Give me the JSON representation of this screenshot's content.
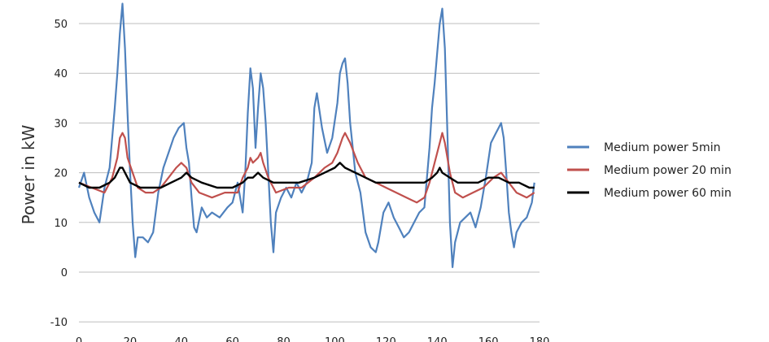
{
  "chart_data": {
    "type": "line",
    "title": "",
    "xlabel": "",
    "ylabel": "Power in kW",
    "xlim": [
      0,
      180
    ],
    "ylim": [
      -10,
      55
    ],
    "x_ticks": [
      0,
      20,
      40,
      60,
      80,
      100,
      120,
      140,
      160,
      180
    ],
    "y_ticks": [
      -10,
      0,
      10,
      20,
      30,
      40,
      50
    ],
    "grid": "horizontal",
    "legend_position": "right",
    "series": [
      {
        "name": "Medium power 5min",
        "color": "#4f81bd",
        "points": [
          [
            0,
            17
          ],
          [
            2,
            20
          ],
          [
            4,
            15
          ],
          [
            6,
            12
          ],
          [
            8,
            10
          ],
          [
            10,
            17
          ],
          [
            12,
            21
          ],
          [
            14,
            33
          ],
          [
            15,
            40
          ],
          [
            16,
            48
          ],
          [
            17,
            54
          ],
          [
            18,
            45
          ],
          [
            19,
            32
          ],
          [
            20,
            20
          ],
          [
            21,
            10
          ],
          [
            22,
            3
          ],
          [
            23,
            7
          ],
          [
            25,
            7
          ],
          [
            27,
            6
          ],
          [
            29,
            8
          ],
          [
            31,
            16
          ],
          [
            33,
            21
          ],
          [
            35,
            24
          ],
          [
            37,
            27
          ],
          [
            39,
            29
          ],
          [
            41,
            30
          ],
          [
            42,
            25
          ],
          [
            43,
            22
          ],
          [
            44,
            15
          ],
          [
            45,
            9
          ],
          [
            46,
            8
          ],
          [
            48,
            13
          ],
          [
            50,
            11
          ],
          [
            52,
            12
          ],
          [
            55,
            11
          ],
          [
            58,
            13
          ],
          [
            60,
            14
          ],
          [
            62,
            18
          ],
          [
            64,
            12
          ],
          [
            65,
            20
          ],
          [
            66,
            32
          ],
          [
            67,
            41
          ],
          [
            68,
            37
          ],
          [
            69,
            25
          ],
          [
            70,
            33
          ],
          [
            71,
            40
          ],
          [
            72,
            37
          ],
          [
            73,
            30
          ],
          [
            74,
            20
          ],
          [
            75,
            10
          ],
          [
            76,
            4
          ],
          [
            77,
            12
          ],
          [
            79,
            15
          ],
          [
            81,
            17
          ],
          [
            83,
            15
          ],
          [
            85,
            18
          ],
          [
            87,
            16
          ],
          [
            89,
            18
          ],
          [
            91,
            22
          ],
          [
            92,
            33
          ],
          [
            93,
            36
          ],
          [
            95,
            29
          ],
          [
            97,
            24
          ],
          [
            99,
            27
          ],
          [
            101,
            34
          ],
          [
            102,
            40
          ],
          [
            103,
            42
          ],
          [
            104,
            43
          ],
          [
            105,
            38
          ],
          [
            106,
            30
          ],
          [
            107,
            25
          ],
          [
            108,
            20
          ],
          [
            110,
            16
          ],
          [
            112,
            8
          ],
          [
            114,
            5
          ],
          [
            116,
            4
          ],
          [
            117,
            6
          ],
          [
            119,
            12
          ],
          [
            121,
            14
          ],
          [
            123,
            11
          ],
          [
            125,
            9
          ],
          [
            127,
            7
          ],
          [
            129,
            8
          ],
          [
            131,
            10
          ],
          [
            133,
            12
          ],
          [
            135,
            13
          ],
          [
            137,
            25
          ],
          [
            138,
            33
          ],
          [
            139,
            38
          ],
          [
            140,
            44
          ],
          [
            141,
            50
          ],
          [
            142,
            53
          ],
          [
            143,
            45
          ],
          [
            144,
            28
          ],
          [
            145,
            10
          ],
          [
            146,
            1
          ],
          [
            147,
            6
          ],
          [
            149,
            10
          ],
          [
            151,
            11
          ],
          [
            153,
            12
          ],
          [
            155,
            9
          ],
          [
            157,
            13
          ],
          [
            159,
            19
          ],
          [
            161,
            26
          ],
          [
            163,
            28
          ],
          [
            164,
            29
          ],
          [
            165,
            30
          ],
          [
            166,
            27
          ],
          [
            167,
            20
          ],
          [
            168,
            12
          ],
          [
            169,
            8
          ],
          [
            170,
            5
          ],
          [
            171,
            8
          ],
          [
            173,
            10
          ],
          [
            175,
            11
          ],
          [
            177,
            14
          ],
          [
            178,
            18
          ]
        ]
      },
      {
        "name": "Medium power 20 min",
        "color": "#c0504d",
        "points": [
          [
            0,
            18
          ],
          [
            5,
            17
          ],
          [
            10,
            16
          ],
          [
            13,
            19
          ],
          [
            15,
            23
          ],
          [
            16,
            27
          ],
          [
            17,
            28
          ],
          [
            18,
            27
          ],
          [
            19,
            23
          ],
          [
            21,
            20
          ],
          [
            23,
            17
          ],
          [
            26,
            16
          ],
          [
            29,
            16
          ],
          [
            32,
            17
          ],
          [
            35,
            19
          ],
          [
            38,
            21
          ],
          [
            40,
            22
          ],
          [
            42,
            21
          ],
          [
            44,
            18
          ],
          [
            47,
            16
          ],
          [
            52,
            15
          ],
          [
            57,
            16
          ],
          [
            62,
            16
          ],
          [
            64,
            19
          ],
          [
            66,
            21
          ],
          [
            67,
            23
          ],
          [
            68,
            22
          ],
          [
            70,
            23
          ],
          [
            71,
            24
          ],
          [
            72,
            22
          ],
          [
            74,
            19
          ],
          [
            77,
            16
          ],
          [
            82,
            17
          ],
          [
            87,
            17
          ],
          [
            92,
            19
          ],
          [
            96,
            21
          ],
          [
            99,
            22
          ],
          [
            101,
            24
          ],
          [
            103,
            27
          ],
          [
            104,
            28
          ],
          [
            106,
            26
          ],
          [
            109,
            22
          ],
          [
            112,
            19
          ],
          [
            116,
            18
          ],
          [
            120,
            17
          ],
          [
            124,
            16
          ],
          [
            128,
            15
          ],
          [
            132,
            14
          ],
          [
            135,
            15
          ],
          [
            137,
            18
          ],
          [
            139,
            22
          ],
          [
            141,
            26
          ],
          [
            142,
            28
          ],
          [
            143,
            26
          ],
          [
            145,
            20
          ],
          [
            147,
            16
          ],
          [
            150,
            15
          ],
          [
            154,
            16
          ],
          [
            158,
            17
          ],
          [
            162,
            19
          ],
          [
            165,
            20
          ],
          [
            168,
            18
          ],
          [
            171,
            16
          ],
          [
            175,
            15
          ],
          [
            178,
            16
          ]
        ]
      },
      {
        "name": "Medium power 60 min",
        "color": "#000000",
        "points": [
          [
            0,
            18
          ],
          [
            4,
            17
          ],
          [
            8,
            17
          ],
          [
            12,
            18
          ],
          [
            14,
            19
          ],
          [
            16,
            21
          ],
          [
            17,
            21
          ],
          [
            18,
            20
          ],
          [
            20,
            18
          ],
          [
            24,
            17
          ],
          [
            28,
            17
          ],
          [
            32,
            17
          ],
          [
            36,
            18
          ],
          [
            40,
            19
          ],
          [
            42,
            20
          ],
          [
            44,
            19
          ],
          [
            48,
            18
          ],
          [
            54,
            17
          ],
          [
            60,
            17
          ],
          [
            64,
            18
          ],
          [
            66,
            19
          ],
          [
            68,
            19
          ],
          [
            70,
            20
          ],
          [
            72,
            19
          ],
          [
            76,
            18
          ],
          [
            80,
            18
          ],
          [
            86,
            18
          ],
          [
            92,
            19
          ],
          [
            96,
            20
          ],
          [
            100,
            21
          ],
          [
            102,
            22
          ],
          [
            104,
            21
          ],
          [
            108,
            20
          ],
          [
            112,
            19
          ],
          [
            116,
            18
          ],
          [
            120,
            18
          ],
          [
            124,
            18
          ],
          [
            128,
            18
          ],
          [
            132,
            18
          ],
          [
            135,
            18
          ],
          [
            138,
            19
          ],
          [
            140,
            20
          ],
          [
            141,
            21
          ],
          [
            142,
            20
          ],
          [
            145,
            19
          ],
          [
            148,
            18
          ],
          [
            152,
            18
          ],
          [
            156,
            18
          ],
          [
            160,
            19
          ],
          [
            164,
            19
          ],
          [
            168,
            18
          ],
          [
            172,
            18
          ],
          [
            176,
            17
          ],
          [
            178,
            17
          ]
        ]
      }
    ]
  }
}
